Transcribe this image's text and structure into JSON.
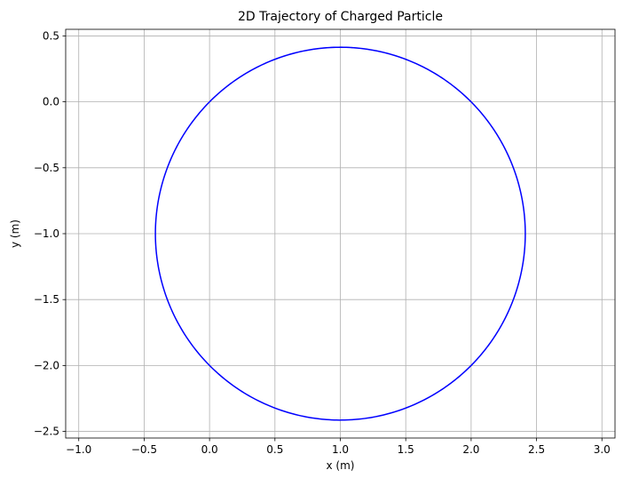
{
  "chart_data": {
    "type": "line",
    "title": "2D Trajectory of Charged Particle",
    "xlabel": "x (m)",
    "ylabel": "y (m)",
    "xlim": [
      -1.1,
      3.1
    ],
    "ylim": [
      -2.55,
      0.55
    ],
    "xticks": [
      -1.0,
      -0.5,
      0.0,
      0.5,
      1.0,
      1.5,
      2.0,
      2.5,
      3.0
    ],
    "yticks": [
      0.5,
      0.0,
      -0.5,
      -1.0,
      -1.5,
      -2.0,
      -2.5
    ],
    "xtick_labels": [
      "−1.0",
      "−0.5",
      "0.0",
      "0.5",
      "1.0",
      "1.5",
      "2.0",
      "2.5",
      "3.0"
    ],
    "ytick_labels": [
      "0.5",
      "0.0",
      "−0.5",
      "−1.0",
      "−1.5",
      "−2.0",
      "−2.5"
    ],
    "grid": true,
    "series": [
      {
        "color": "#0000ff",
        "shape": "circle",
        "center": [
          1.0,
          -1.0
        ],
        "radius": 1.414,
        "start": [
          0.0,
          0.0
        ],
        "end": [
          1.29,
          -2.385
        ]
      }
    ]
  }
}
